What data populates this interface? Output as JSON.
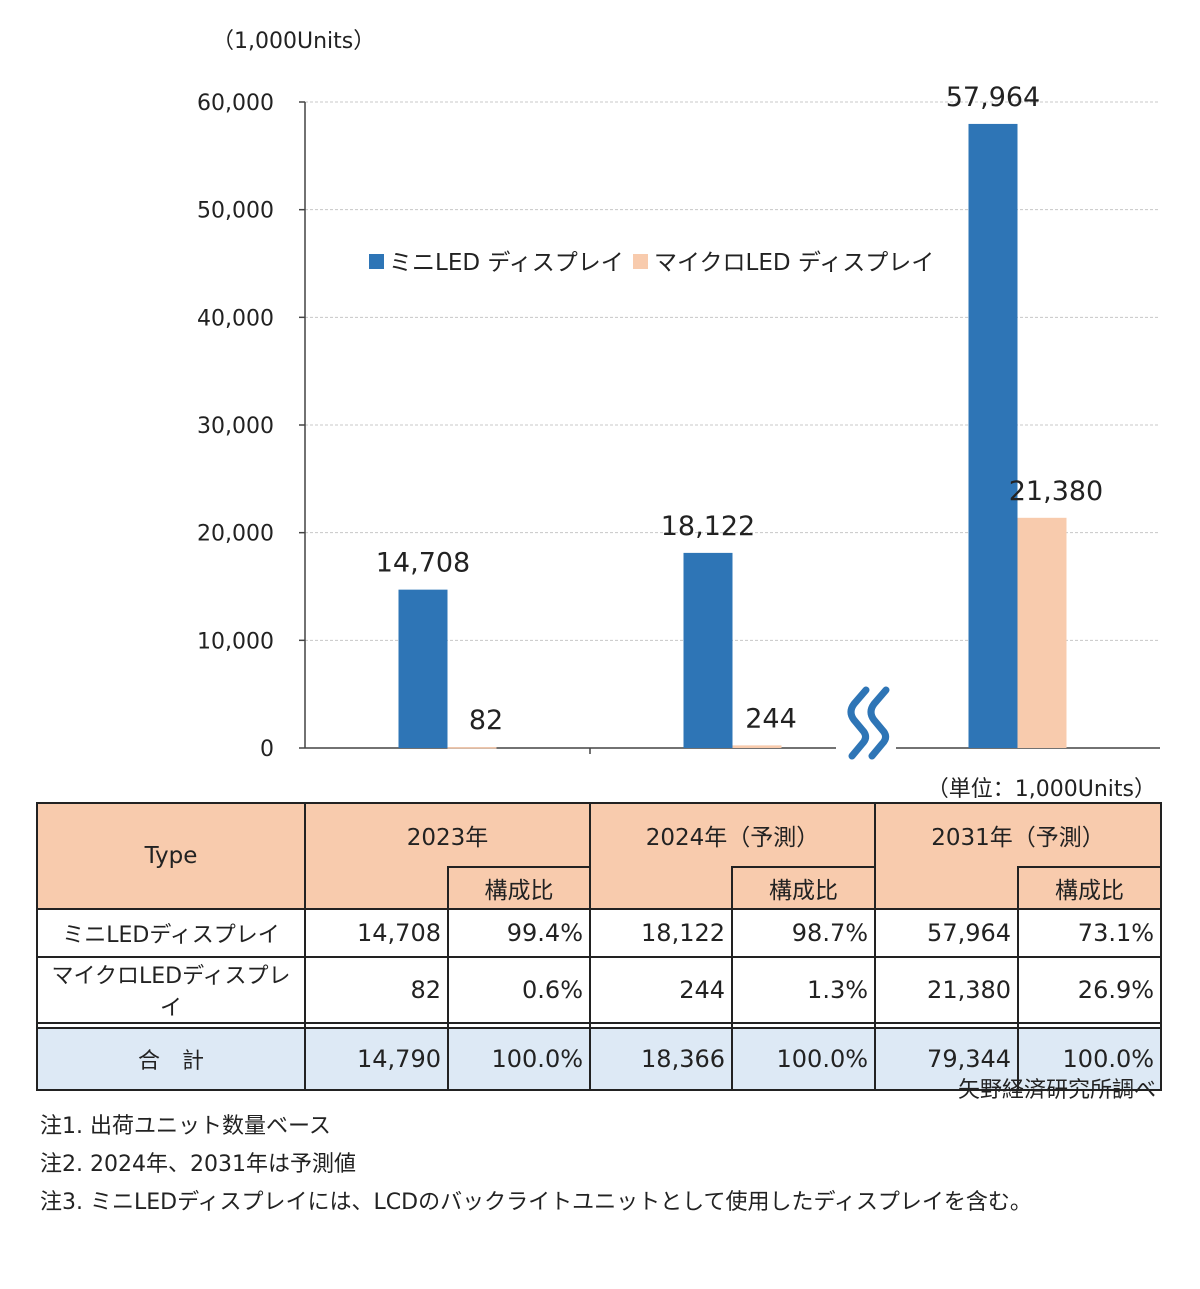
{
  "chart_data": {
    "type": "bar",
    "unit_label": "（1,000Units）",
    "categories": [
      "2023年",
      "2024年（予測）",
      "2031年（予測）"
    ],
    "series": [
      {
        "name": "ミニLED ディスプレイ",
        "values": [
          14708,
          18122,
          57964
        ],
        "labels": [
          "14,708",
          "18,122",
          "57,964"
        ],
        "color": "#2e75b6"
      },
      {
        "name": "マイクロLED ディスプレイ",
        "values": [
          82,
          244,
          21380
        ],
        "labels": [
          "82",
          "244",
          "21,380"
        ],
        "color": "#f8cbad"
      }
    ],
    "ylim": [
      0,
      60000
    ],
    "yticks": [
      "0",
      "10,000",
      "20,000",
      "30,000",
      "40,000",
      "50,000",
      "60,000"
    ],
    "yticks_values": [
      0,
      10000,
      20000,
      30000,
      40000,
      50000,
      60000
    ],
    "grid": true,
    "legend": "top",
    "axis_break": "between 2024 and 2031",
    "break_color": "#2e75b6"
  },
  "table": {
    "unit_note": "（単位：1,000Units）",
    "type_header": "Type",
    "years": [
      "2023年",
      "2024年（予測）",
      "2031年（予測）"
    ],
    "ratio_header": "構成比",
    "rows": [
      {
        "label": "ミニLEDディスプレイ",
        "cells": [
          "14,708",
          "99.4%",
          "18,122",
          "98.7%",
          "57,964",
          "73.1%"
        ]
      },
      {
        "label": "マイクロLEDディスプレイ",
        "cells": [
          "82",
          "0.6%",
          "244",
          "1.3%",
          "21,380",
          "26.9%"
        ]
      }
    ],
    "total": {
      "label": "合　計",
      "cells": [
        "14,790",
        "100.0%",
        "18,366",
        "100.0%",
        "79,344",
        "100.0%"
      ]
    },
    "header_color": "#f8cbad",
    "total_color": "#dde9f5"
  },
  "source": "矢野経済研究所調べ",
  "notes": [
    "注1.  出荷ユニット数量ベース",
    "注2.  2024年、2031年は予測値",
    "注3.  ミニLEDディスプレイには、LCDのバックライトユニットとして使用したディスプレイを含む。"
  ]
}
